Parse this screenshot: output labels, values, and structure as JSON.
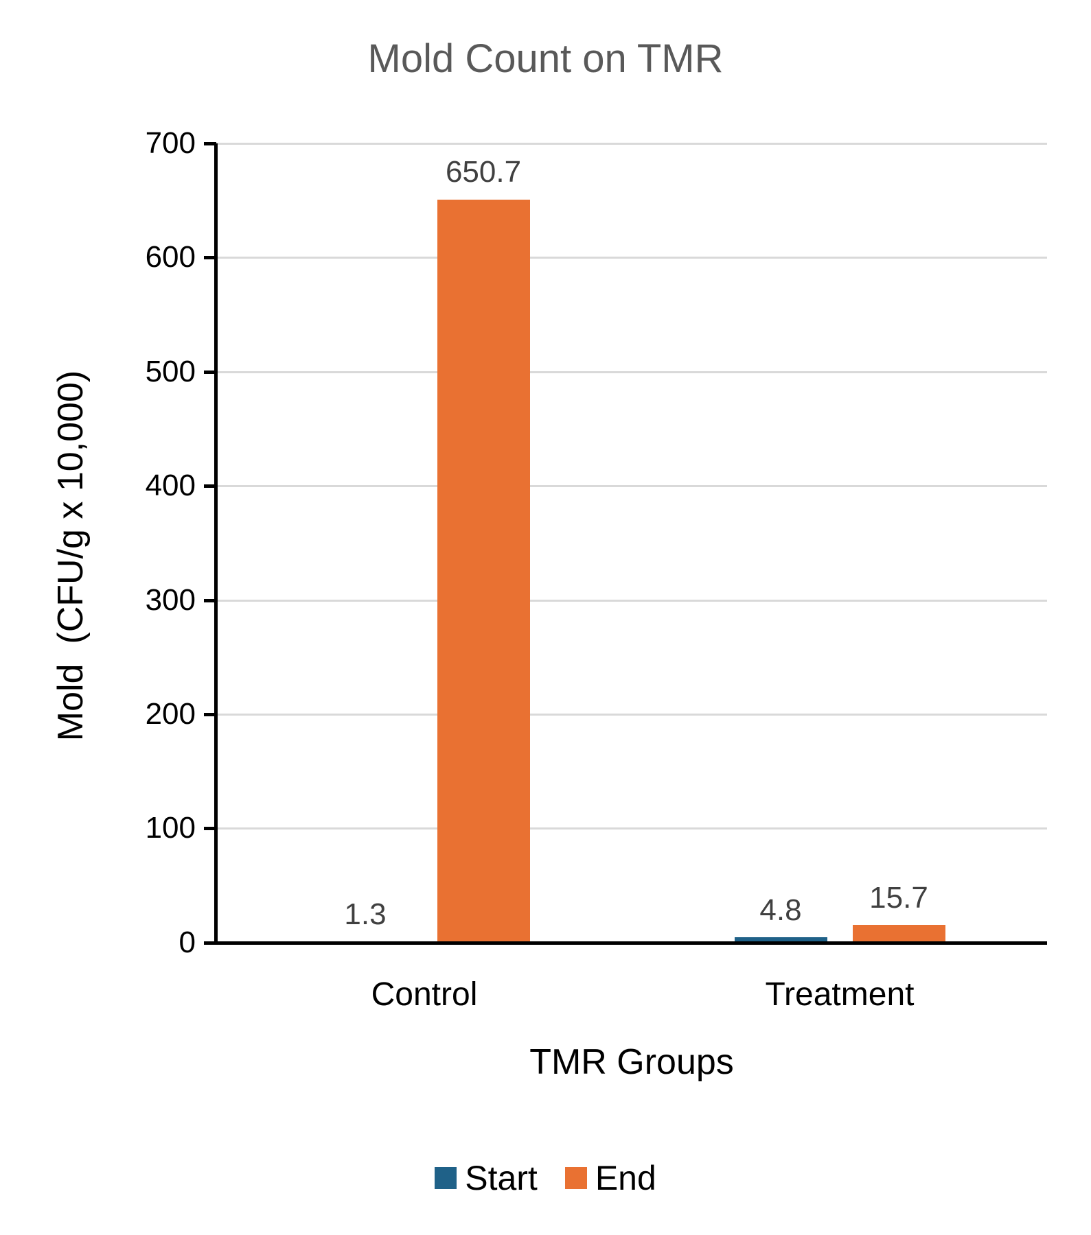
{
  "chart_data": {
    "type": "bar",
    "title": "Mold Count on TMR",
    "xlabel": "TMR Groups",
    "ylabel": "Mold  (CFU/g x 10,000)",
    "categories": [
      "Control",
      "Treatment"
    ],
    "series": [
      {
        "name": "Start",
        "color": "#1f6188",
        "values": [
          1.3,
          4.8
        ]
      },
      {
        "name": "End",
        "color": "#e97132",
        "values": [
          650.7,
          15.7
        ]
      }
    ],
    "ylim": [
      0,
      700
    ],
    "yticks": [
      0,
      100,
      200,
      300,
      400,
      500,
      600,
      700
    ],
    "grid": true,
    "legend_position": "bottom",
    "data_labels": true
  },
  "labels": {
    "title": "Mold Count on TMR",
    "xlabel": "TMR Groups",
    "ylabel": "Mold  (CFU/g x 10,000)",
    "categories": [
      "Control",
      "Treatment"
    ],
    "yticks": [
      "0",
      "100",
      "200",
      "300",
      "400",
      "500",
      "600",
      "700"
    ],
    "bar_labels": {
      "control_start": "1.3",
      "control_end": "650.7",
      "treatment_start": "4.8",
      "treatment_end": "15.7"
    },
    "legend": [
      "Start",
      "End"
    ]
  },
  "colors": {
    "start": "#1f6188",
    "end": "#e97132",
    "grid": "#d9d9d9",
    "title": "#595959"
  }
}
